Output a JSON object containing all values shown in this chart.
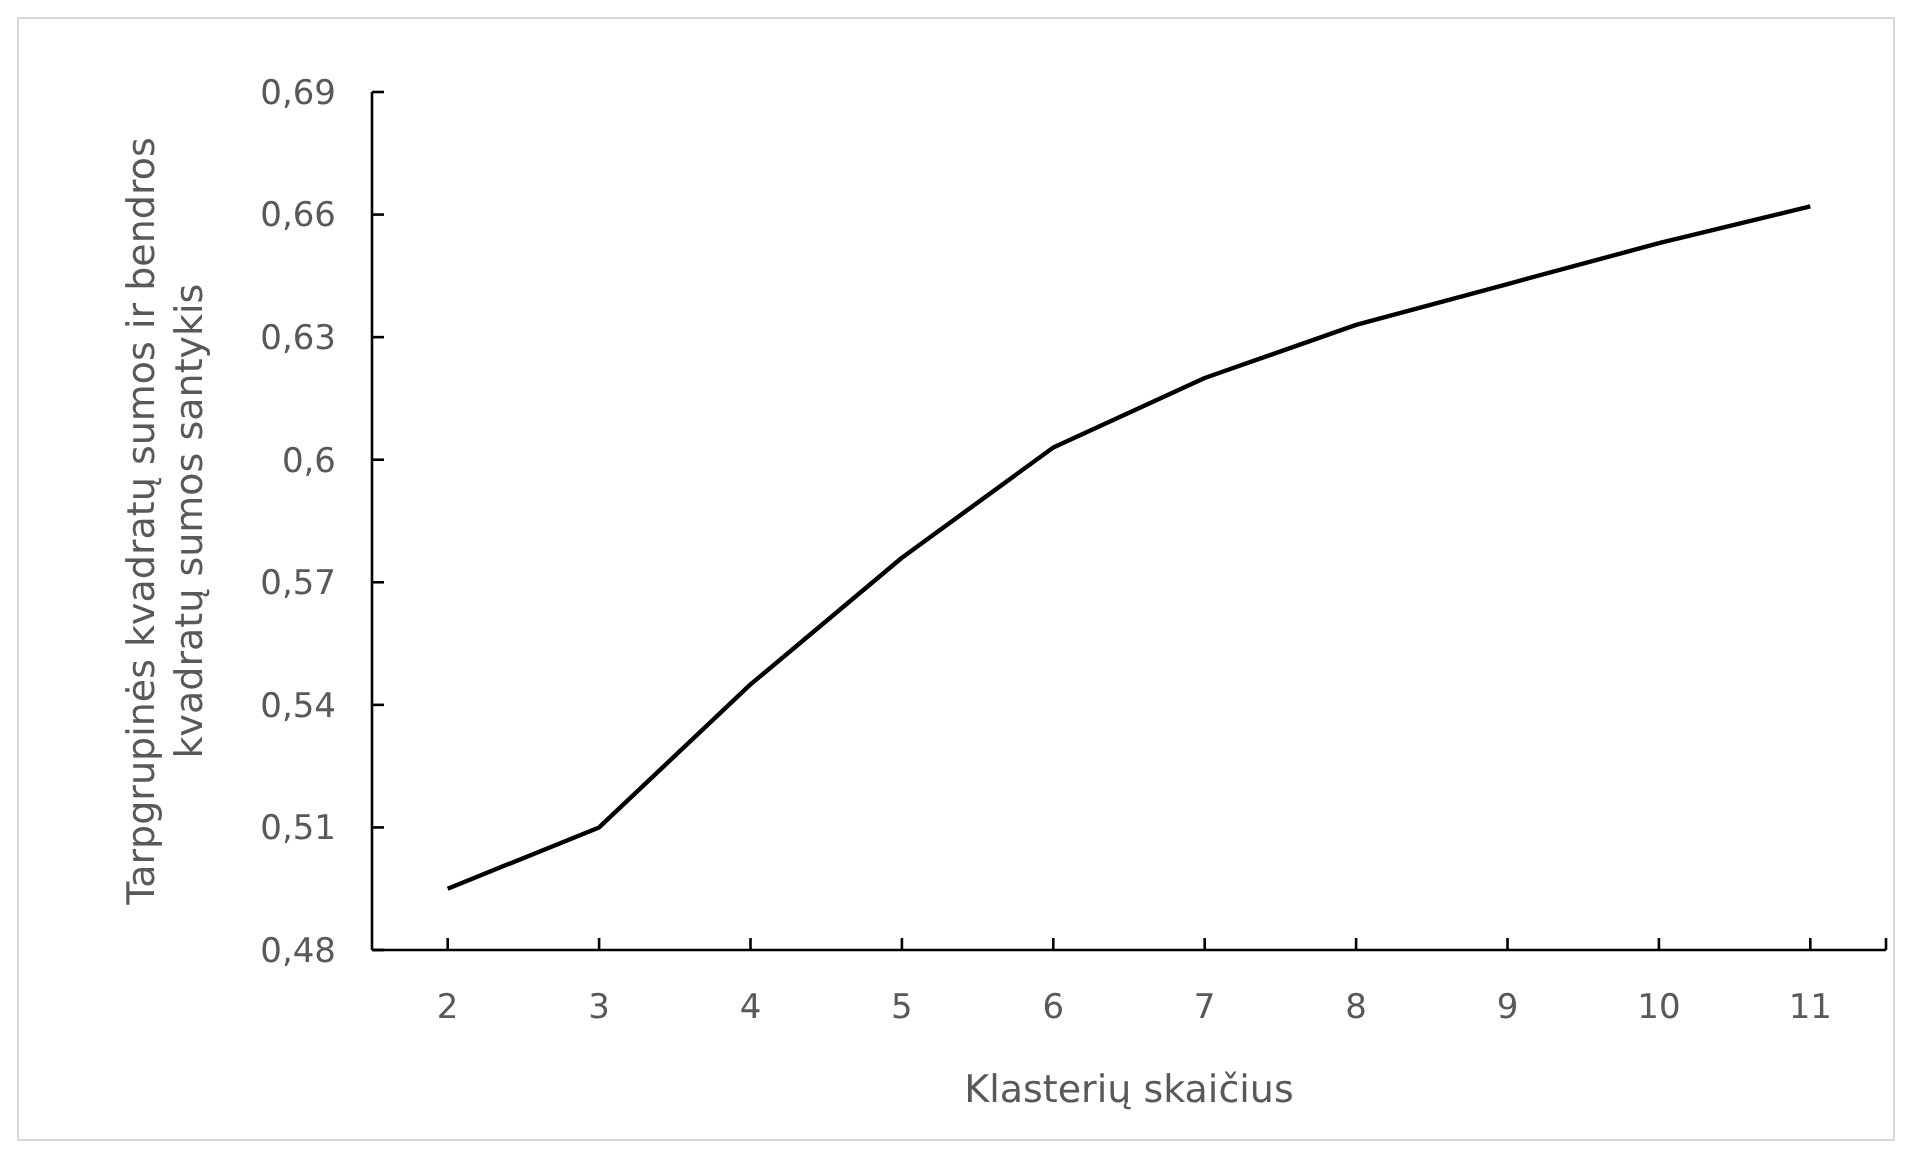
{
  "chart_data": {
    "type": "line",
    "xlabel": "Klasterių skaičius",
    "ylabel": "Tarpgrupinės kvadratų sumos ir bendros kvadratų sumos santykis",
    "categories": [
      "2",
      "3",
      "4",
      "5",
      "6",
      "7",
      "8",
      "9",
      "10",
      "11"
    ],
    "series": [
      {
        "color": "#000000",
        "values": [
          0.495,
          0.51,
          0.545,
          0.576,
          0.603,
          0.62,
          0.633,
          0.643,
          0.653,
          0.662
        ]
      }
    ],
    "ylim": [
      0.48,
      0.69
    ],
    "yticks": [
      {
        "value": 0.48,
        "label": "0,48"
      },
      {
        "value": 0.51,
        "label": "0,51"
      },
      {
        "value": 0.54,
        "label": "0,54"
      },
      {
        "value": 0.57,
        "label": "0,57"
      },
      {
        "value": 0.6,
        "label": "0,6"
      },
      {
        "value": 0.63,
        "label": "0,63"
      },
      {
        "value": 0.66,
        "label": "0,66"
      },
      {
        "value": 0.69,
        "label": "0,69"
      }
    ],
    "grid": false,
    "marker": "none",
    "line_style": "solid"
  }
}
